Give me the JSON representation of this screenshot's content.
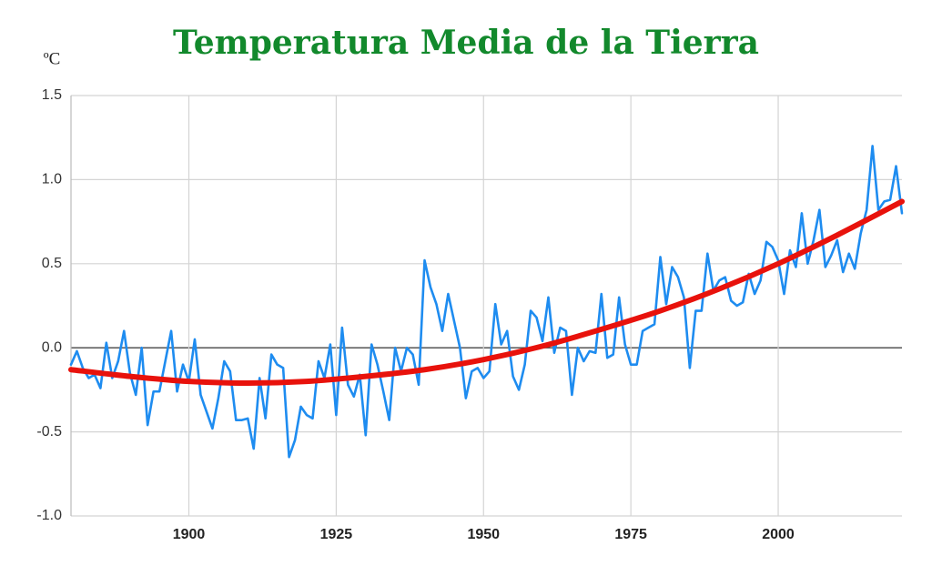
{
  "chart_data": {
    "type": "line",
    "title": "Temperatura Media de la Tierra",
    "y_label": "ºC",
    "x": [
      1880,
      1881,
      1882,
      1883,
      1884,
      1885,
      1886,
      1887,
      1888,
      1889,
      1890,
      1891,
      1892,
      1893,
      1894,
      1895,
      1896,
      1897,
      1898,
      1899,
      1900,
      1901,
      1902,
      1903,
      1904,
      1905,
      1906,
      1907,
      1908,
      1909,
      1910,
      1911,
      1912,
      1913,
      1914,
      1915,
      1916,
      1917,
      1918,
      1919,
      1920,
      1921,
      1922,
      1923,
      1924,
      1925,
      1926,
      1927,
      1928,
      1929,
      1930,
      1931,
      1932,
      1933,
      1934,
      1935,
      1936,
      1937,
      1938,
      1939,
      1940,
      1941,
      1942,
      1943,
      1944,
      1945,
      1946,
      1947,
      1948,
      1949,
      1950,
      1951,
      1952,
      1953,
      1954,
      1955,
      1956,
      1957,
      1958,
      1959,
      1960,
      1961,
      1962,
      1963,
      1964,
      1965,
      1966,
      1967,
      1968,
      1969,
      1970,
      1971,
      1972,
      1973,
      1974,
      1975,
      1976,
      1977,
      1978,
      1979,
      1980,
      1981,
      1982,
      1983,
      1984,
      1985,
      1986,
      1987,
      1988,
      1989,
      1990,
      1991,
      1992,
      1993,
      1994,
      1995,
      1996,
      1997,
      1998,
      1999,
      2000,
      2001,
      2002,
      2003,
      2004,
      2005,
      2006,
      2007,
      2008,
      2009,
      2010,
      2011,
      2012,
      2013,
      2014,
      2015,
      2016,
      2017,
      2018,
      2019,
      2020,
      2021
    ],
    "series": [
      {
        "color": "#1e8cf0",
        "values": [
          -0.1,
          -0.02,
          -0.12,
          -0.18,
          -0.16,
          -0.24,
          0.03,
          -0.18,
          -0.08,
          0.1,
          -0.15,
          -0.28,
          0.0,
          -0.46,
          -0.26,
          -0.26,
          -0.08,
          0.1,
          -0.26,
          -0.1,
          -0.2,
          0.05,
          -0.28,
          -0.38,
          -0.48,
          -0.3,
          -0.08,
          -0.14,
          -0.43,
          -0.43,
          -0.42,
          -0.6,
          -0.18,
          -0.42,
          -0.04,
          -0.1,
          -0.12,
          -0.65,
          -0.55,
          -0.35,
          -0.4,
          -0.42,
          -0.08,
          -0.18,
          0.02,
          -0.4,
          0.12,
          -0.22,
          -0.29,
          -0.16,
          -0.52,
          0.02,
          -0.1,
          -0.26,
          -0.43,
          0.0,
          -0.14,
          0.0,
          -0.04,
          -0.22,
          0.52,
          0.36,
          0.26,
          0.1,
          0.32,
          0.16,
          0.0,
          -0.3,
          -0.14,
          -0.12,
          -0.18,
          -0.14,
          0.26,
          0.02,
          0.1,
          -0.17,
          -0.25,
          -0.1,
          0.22,
          0.18,
          0.04,
          0.3,
          -0.03,
          0.12,
          0.1,
          -0.28,
          0.0,
          -0.08,
          -0.02,
          -0.03,
          0.32,
          -0.06,
          -0.04,
          0.3,
          0.02,
          -0.1,
          -0.1,
          0.1,
          0.12,
          0.14,
          0.54,
          0.26,
          0.48,
          0.42,
          0.3,
          -0.12,
          0.22,
          0.22,
          0.56,
          0.34,
          0.4,
          0.42,
          0.28,
          0.25,
          0.27,
          0.44,
          0.32,
          0.4,
          0.63,
          0.6,
          0.52,
          0.32,
          0.58,
          0.48,
          0.8,
          0.5,
          0.64,
          0.82,
          0.48,
          0.55,
          0.64,
          0.45,
          0.56,
          0.47,
          0.68,
          0.82,
          1.2,
          0.82,
          0.87,
          0.88,
          1.08,
          0.8
        ]
      },
      {
        "color": "#e8120c",
        "x": [
          1880,
          1890,
          1900,
          1910,
          1920,
          1930,
          1940,
          1950,
          1960,
          1970,
          1980,
          1990,
          2000,
          2010,
          2021
        ],
        "values": [
          -0.13,
          -0.17,
          -0.2,
          -0.21,
          -0.2,
          -0.17,
          -0.13,
          -0.07,
          0.01,
          0.11,
          0.22,
          0.35,
          0.5,
          0.67,
          0.87
        ]
      }
    ],
    "xlim": [
      1880,
      2021
    ],
    "xticks": [
      1900,
      1925,
      1950,
      1975,
      2000
    ],
    "ylim": [
      -1.0,
      1.5
    ],
    "yticks": [
      {
        "value": -1.0,
        "label": "-1.0"
      },
      {
        "value": -0.5,
        "label": "-0.5"
      },
      {
        "value": 0,
        "label": "0.0"
      },
      {
        "value": 0.5,
        "label": "0.5"
      },
      {
        "value": 1.0,
        "label": "1.0"
      },
      {
        "value": 1.5,
        "label": "1.5"
      }
    ],
    "grid": true
  }
}
